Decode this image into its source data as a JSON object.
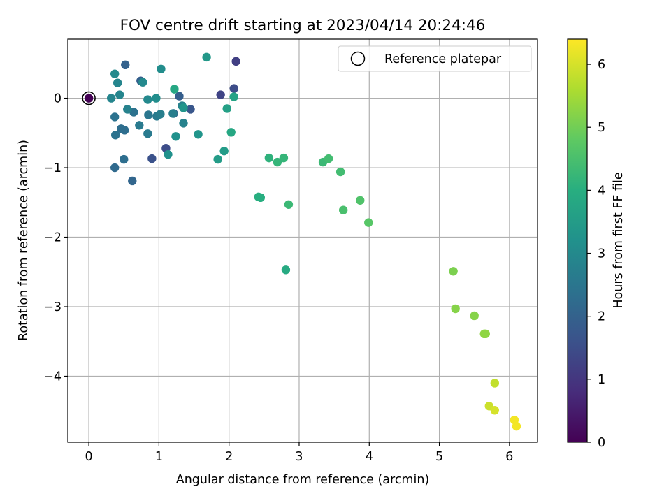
{
  "chart_data": {
    "type": "scatter",
    "title": "FOV centre drift starting at 2023/04/14 20:24:46",
    "xlabel": "Angular distance from reference (arcmin)",
    "ylabel": "Rotation from reference (arcmin)",
    "xlim": [
      -0.3,
      6.4
    ],
    "ylim": [
      -4.95,
      0.85
    ],
    "xticks": [
      0,
      1,
      2,
      3,
      4,
      5,
      6
    ],
    "yticks": [
      -4,
      -3,
      -2,
      -1,
      0
    ],
    "grid": true,
    "legend": {
      "position": "top-right",
      "entries": [
        "Reference platepar"
      ]
    },
    "reference_point": {
      "x": 0,
      "y": 0
    },
    "colorbar": {
      "label": "Hours from first FF file",
      "range": [
        0,
        6.4
      ],
      "ticks": [
        0,
        1,
        2,
        3,
        4,
        5,
        6
      ],
      "colormap": "viridis",
      "stops": [
        "#440154",
        "#472d7b",
        "#3b528b",
        "#2c728e",
        "#21918c",
        "#28ae80",
        "#5ec962",
        "#addc30",
        "#fde725"
      ]
    },
    "points": [
      {
        "x": 0.0,
        "y": 0.0,
        "c": 0.0
      },
      {
        "x": 2.1,
        "y": 0.53,
        "c": 1.2
      },
      {
        "x": 1.88,
        "y": 0.05,
        "c": 1.3
      },
      {
        "x": 2.07,
        "y": 0.14,
        "c": 1.5
      },
      {
        "x": 1.1,
        "y": -0.72,
        "c": 1.5
      },
      {
        "x": 0.9,
        "y": -0.87,
        "c": 1.6
      },
      {
        "x": 1.45,
        "y": -0.16,
        "c": 1.7
      },
      {
        "x": 1.29,
        "y": 0.03,
        "c": 1.9
      },
      {
        "x": 1.21,
        "y": -0.22,
        "c": 1.9
      },
      {
        "x": 0.74,
        "y": 0.25,
        "c": 1.9
      },
      {
        "x": 0.52,
        "y": 0.48,
        "c": 2.0
      },
      {
        "x": 0.62,
        "y": -1.19,
        "c": 2.1
      },
      {
        "x": 0.37,
        "y": -1.0,
        "c": 2.2
      },
      {
        "x": 0.5,
        "y": -0.88,
        "c": 2.3
      },
      {
        "x": 0.46,
        "y": -0.44,
        "c": 2.3
      },
      {
        "x": 0.51,
        "y": -0.46,
        "c": 2.3
      },
      {
        "x": 0.38,
        "y": -0.53,
        "c": 2.4
      },
      {
        "x": 0.37,
        "y": -0.27,
        "c": 2.4
      },
      {
        "x": 0.64,
        "y": -0.2,
        "c": 2.4
      },
      {
        "x": 0.85,
        "y": -0.24,
        "c": 2.5
      },
      {
        "x": 0.72,
        "y": -0.39,
        "c": 2.6
      },
      {
        "x": 0.84,
        "y": -0.51,
        "c": 2.6
      },
      {
        "x": 0.97,
        "y": -0.26,
        "c": 2.6
      },
      {
        "x": 1.02,
        "y": -0.23,
        "c": 2.7
      },
      {
        "x": 1.2,
        "y": -0.22,
        "c": 2.7
      },
      {
        "x": 1.33,
        "y": -0.11,
        "c": 2.8
      },
      {
        "x": 1.35,
        "y": -0.36,
        "c": 2.8
      },
      {
        "x": 0.55,
        "y": -0.16,
        "c": 2.8
      },
      {
        "x": 0.32,
        "y": 0.0,
        "c": 2.9
      },
      {
        "x": 0.44,
        "y": 0.05,
        "c": 2.9
      },
      {
        "x": 0.41,
        "y": 0.22,
        "c": 2.9
      },
      {
        "x": 0.37,
        "y": 0.35,
        "c": 3.0
      },
      {
        "x": 0.77,
        "y": 0.23,
        "c": 3.0
      },
      {
        "x": 0.84,
        "y": -0.02,
        "c": 3.0
      },
      {
        "x": 0.96,
        "y": 0.0,
        "c": 3.1
      },
      {
        "x": 1.03,
        "y": 0.42,
        "c": 3.1
      },
      {
        "x": 1.13,
        "y": -0.81,
        "c": 3.2
      },
      {
        "x": 1.24,
        "y": -0.55,
        "c": 3.2
      },
      {
        "x": 1.35,
        "y": -0.14,
        "c": 3.3
      },
      {
        "x": 1.56,
        "y": -0.52,
        "c": 3.3
      },
      {
        "x": 1.68,
        "y": 0.59,
        "c": 3.4
      },
      {
        "x": 1.84,
        "y": -0.88,
        "c": 3.5
      },
      {
        "x": 1.93,
        "y": -0.76,
        "c": 3.5
      },
      {
        "x": 1.97,
        "y": -0.15,
        "c": 3.6
      },
      {
        "x": 2.07,
        "y": 0.02,
        "c": 3.7
      },
      {
        "x": 2.03,
        "y": -0.49,
        "c": 3.8
      },
      {
        "x": 1.22,
        "y": 0.13,
        "c": 3.8
      },
      {
        "x": 2.81,
        "y": -2.47,
        "c": 3.9
      },
      {
        "x": 2.42,
        "y": -1.42,
        "c": 4.0
      },
      {
        "x": 2.45,
        "y": -1.43,
        "c": 4.0
      },
      {
        "x": 2.57,
        "y": -0.86,
        "c": 4.1
      },
      {
        "x": 2.69,
        "y": -0.92,
        "c": 4.2
      },
      {
        "x": 2.78,
        "y": -0.86,
        "c": 4.2
      },
      {
        "x": 2.85,
        "y": -1.53,
        "c": 4.3
      },
      {
        "x": 3.34,
        "y": -0.92,
        "c": 4.3
      },
      {
        "x": 3.42,
        "y": -0.87,
        "c": 4.4
      },
      {
        "x": 3.59,
        "y": -1.06,
        "c": 4.4
      },
      {
        "x": 3.63,
        "y": -1.61,
        "c": 4.5
      },
      {
        "x": 3.87,
        "y": -1.47,
        "c": 4.6
      },
      {
        "x": 3.99,
        "y": -1.79,
        "c": 4.7
      },
      {
        "x": 5.2,
        "y": -2.49,
        "c": 5.1
      },
      {
        "x": 5.23,
        "y": -3.03,
        "c": 5.2
      },
      {
        "x": 5.5,
        "y": -3.13,
        "c": 5.2
      },
      {
        "x": 5.64,
        "y": -3.39,
        "c": 5.3
      },
      {
        "x": 5.66,
        "y": -3.39,
        "c": 5.3
      },
      {
        "x": 5.79,
        "y": -4.1,
        "c": 5.8
      },
      {
        "x": 5.71,
        "y": -4.43,
        "c": 5.9
      },
      {
        "x": 5.79,
        "y": -4.49,
        "c": 6.0
      },
      {
        "x": 6.07,
        "y": -4.63,
        "c": 6.3
      },
      {
        "x": 6.1,
        "y": -4.72,
        "c": 6.3
      }
    ]
  }
}
